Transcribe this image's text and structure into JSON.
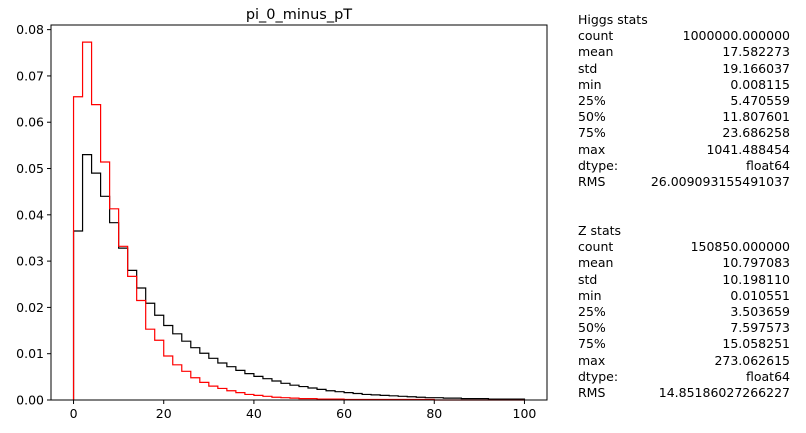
{
  "chart_data": {
    "type": "histogram",
    "title": "pi_0_minus_pT",
    "xlim": [
      -5,
      105
    ],
    "ylim": [
      0,
      0.081
    ],
    "x_ticks": [
      0,
      20,
      40,
      60,
      80,
      100
    ],
    "y_ticks": [
      0.0,
      0.01,
      0.02,
      0.03,
      0.04,
      0.05,
      0.06,
      0.07,
      0.08
    ],
    "x_tick_labels": [
      "0",
      "20",
      "40",
      "60",
      "80",
      "100"
    ],
    "y_tick_labels": [
      "0.00",
      "0.01",
      "0.02",
      "0.03",
      "0.04",
      "0.05",
      "0.06",
      "0.07",
      "0.08"
    ],
    "bin_edges": [
      0,
      2,
      4,
      6,
      8,
      10,
      12,
      14,
      16,
      18,
      20,
      22,
      24,
      26,
      28,
      30,
      32,
      34,
      36,
      38,
      40,
      42,
      44,
      46,
      48,
      50,
      52,
      54,
      56,
      58,
      60,
      62,
      64,
      66,
      68,
      70,
      72,
      74,
      76,
      78,
      80,
      82,
      84,
      86,
      88,
      90,
      92,
      94,
      96,
      98,
      100
    ],
    "series": [
      {
        "color": "#000000",
        "values": [
          0.0365,
          0.053,
          0.049,
          0.044,
          0.0383,
          0.0328,
          0.028,
          0.0242,
          0.0209,
          0.0183,
          0.0161,
          0.0143,
          0.0127,
          0.0113,
          0.0101,
          0.009,
          0.008,
          0.0072,
          0.0064,
          0.0057,
          0.0051,
          0.0046,
          0.0041,
          0.0036,
          0.0032,
          0.0029,
          0.0026,
          0.0023,
          0.002,
          0.0018,
          0.0016,
          0.0014,
          0.0012,
          0.0011,
          0.001,
          0.0009,
          0.0008,
          0.0007,
          0.0006,
          0.0005,
          0.0005,
          0.0004,
          0.0004,
          0.0003,
          0.0003,
          0.0003,
          0.0002,
          0.0002,
          0.0002,
          0.0002
        ]
      },
      {
        "color": "#ff0000",
        "values": [
          0.0655,
          0.0773,
          0.0638,
          0.0514,
          0.0413,
          0.0332,
          0.0267,
          0.0215,
          0.0153,
          0.0129,
          0.0095,
          0.0076,
          0.0062,
          0.0048,
          0.0038,
          0.003,
          0.0025,
          0.002,
          0.0016,
          0.0012,
          0.001,
          0.0008,
          0.0006,
          0.0005,
          0.0004,
          0.0003,
          0.0003,
          0.0002,
          0.0002,
          0.0002,
          0.0001,
          0.0001,
          0.0001,
          0.0001,
          0.0001,
          0.0001,
          0.0001,
          0.0001,
          0.0001,
          0.0001,
          0,
          0,
          0,
          0,
          0,
          0,
          0,
          0,
          0,
          0
        ]
      }
    ]
  },
  "stats_panels": [
    {
      "title": "Higgs stats",
      "rows": [
        {
          "key": "count",
          "value": "1000000.000000"
        },
        {
          "key": "mean",
          "value": "17.582273"
        },
        {
          "key": "std",
          "value": "19.166037"
        },
        {
          "key": "min",
          "value": "0.008115"
        },
        {
          "key": "25%",
          "value": "5.470559"
        },
        {
          "key": "50%",
          "value": "11.807601"
        },
        {
          "key": "75%",
          "value": "23.686258"
        },
        {
          "key": "max",
          "value": "1041.488454"
        },
        {
          "key": "dtype:",
          "value": "float64"
        },
        {
          "key": "RMS",
          "value": "26.009093155491037"
        }
      ]
    },
    {
      "title": "Z stats",
      "rows": [
        {
          "key": "count",
          "value": "150850.000000"
        },
        {
          "key": "mean",
          "value": "10.797083"
        },
        {
          "key": "std",
          "value": "10.198110"
        },
        {
          "key": "min",
          "value": "0.010551"
        },
        {
          "key": "25%",
          "value": "3.503659"
        },
        {
          "key": "50%",
          "value": "7.597573"
        },
        {
          "key": "75%",
          "value": "15.058251"
        },
        {
          "key": "max",
          "value": "273.062615"
        },
        {
          "key": "dtype:",
          "value": "float64"
        },
        {
          "key": "RMS",
          "value": "14.85186027266227"
        }
      ]
    }
  ]
}
